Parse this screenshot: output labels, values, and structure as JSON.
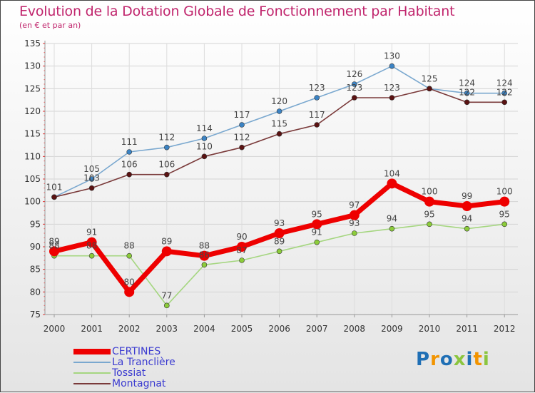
{
  "title": "Evolution de la Dotation Globale de Fonctionnement par Habitant",
  "subtitle": "(en € et par an)",
  "logo": {
    "letters": [
      "P",
      "r",
      "o",
      "x",
      "i",
      "t",
      "i"
    ],
    "colors": [
      "#1f6fb5",
      "#f29400",
      "#1f6fb5",
      "#8bc53f",
      "#1f6fb5",
      "#f29400",
      "#8bc53f"
    ]
  },
  "chart_data": {
    "type": "line",
    "title": "Evolution de la Dotation Globale de Fonctionnement par Habitant",
    "ylabel": "(en € et par an)",
    "xlabel": "",
    "ylim": [
      75,
      135
    ],
    "yticks": [
      75,
      80,
      85,
      90,
      95,
      100,
      105,
      110,
      115,
      120,
      125,
      130,
      135
    ],
    "categories": [
      "2000",
      "2001",
      "2002",
      "2003",
      "2004",
      "2005",
      "2006",
      "2007",
      "2008",
      "2009",
      "2010",
      "2011",
      "2012"
    ],
    "grid": true,
    "legend_position": "bottom-left",
    "series": [
      {
        "name": "La Tranclière",
        "color": "#7aa8cf",
        "marker": "#3b83c4",
        "values": [
          101,
          105,
          111,
          112,
          114,
          117,
          120,
          123,
          126,
          130,
          125,
          124,
          124
        ],
        "labels": [
          "",
          "105",
          "111",
          "112",
          "114",
          "117",
          "120",
          "123",
          "126",
          "130",
          "125",
          "124",
          "124"
        ]
      },
      {
        "name": "Montagnat",
        "color": "#7a3a3a",
        "marker": "#5a1212",
        "values": [
          101,
          103,
          106,
          106,
          110,
          112,
          115,
          117,
          123,
          123,
          125,
          122,
          122
        ],
        "labels": [
          "101",
          "103",
          "106",
          "106",
          "110",
          "112",
          "115",
          "117",
          "123",
          "123",
          "",
          "122",
          "122"
        ]
      },
      {
        "name": "Tossiat",
        "color": "#a5d680",
        "marker": "#8ccc3a",
        "values": [
          88,
          88,
          88,
          77,
          86,
          87,
          89,
          91,
          93,
          94,
          95,
          94,
          95
        ],
        "labels": [
          "88",
          "88",
          "88",
          "77",
          "86",
          "87",
          "89",
          "91",
          "93",
          "94",
          "95",
          "94",
          "95"
        ]
      },
      {
        "name": "CERTINES",
        "color": "#ee0000",
        "marker": "#ee0000",
        "values": [
          89,
          91,
          80,
          89,
          88,
          90,
          93,
          95,
          97,
          104,
          100,
          99,
          100
        ],
        "labels": [
          "89",
          "91",
          "80",
          "89",
          "88",
          "90",
          "93",
          "95",
          "97",
          "104",
          "100",
          "99",
          "100"
        ]
      }
    ],
    "legend": [
      {
        "name": "CERTINES",
        "color": "#ee0000"
      },
      {
        "name": "La Tranclière",
        "color": "#7aa8cf"
      },
      {
        "name": "Tossiat",
        "color": "#a5d680"
      },
      {
        "name": "Montagnat",
        "color": "#7a3a3a"
      }
    ],
    "legend_text_color": "#3a3ad0"
  }
}
